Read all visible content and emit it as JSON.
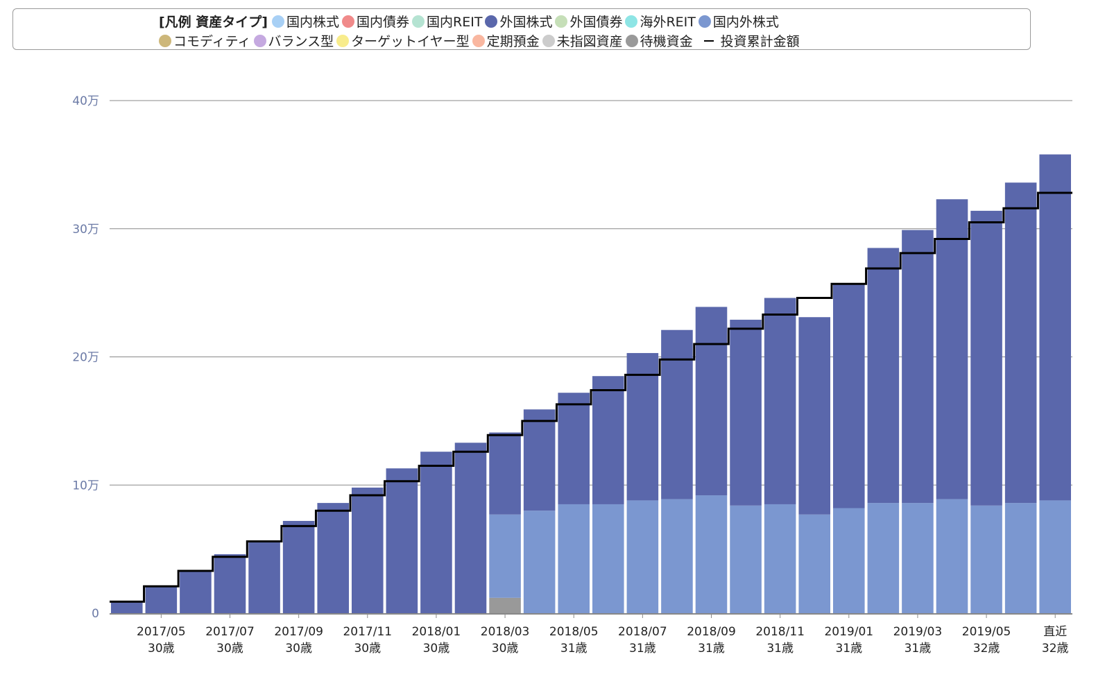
{
  "legend": {
    "title": "[凡例 資産タイプ]",
    "items": [
      {
        "label": "国内株式",
        "color": "#a8d0f5"
      },
      {
        "label": "国内債券",
        "color": "#f08a8a"
      },
      {
        "label": "国内REIT",
        "color": "#b5e3d2"
      },
      {
        "label": "外国株式",
        "color": "#5a67ab"
      },
      {
        "label": "外国債券",
        "color": "#c6dfb8"
      },
      {
        "label": "海外REIT",
        "color": "#8ee5e5"
      },
      {
        "label": "国内外株式",
        "color": "#7b97d0"
      },
      {
        "label": "コモディティ",
        "color": "#cdb77a"
      },
      {
        "label": "バランス型",
        "color": "#c5a9e0"
      },
      {
        "label": "ターゲットイヤー型",
        "color": "#f8ec8c"
      },
      {
        "label": "定期預金",
        "color": "#f9b7a0"
      },
      {
        "label": "未指図資産",
        "color": "#cccccc"
      },
      {
        "label": "待機資金",
        "color": "#999999"
      }
    ],
    "line_label": "投資累計金額"
  },
  "chart_data": {
    "type": "bar",
    "stacked": true,
    "y_tick_labels": [
      "0",
      "10万",
      "20万",
      "30万",
      "40万"
    ],
    "y_tick_values": [
      0,
      100000,
      200000,
      300000,
      400000
    ],
    "ylim": [
      0,
      400000
    ],
    "grid": true,
    "x_labels": [
      {
        "date": "2017/05",
        "age": "30歳",
        "index": 1
      },
      {
        "date": "2017/07",
        "age": "30歳",
        "index": 3
      },
      {
        "date": "2017/09",
        "age": "30歳",
        "index": 5
      },
      {
        "date": "2017/11",
        "age": "30歳",
        "index": 7
      },
      {
        "date": "2018/01",
        "age": "30歳",
        "index": 9
      },
      {
        "date": "2018/03",
        "age": "30歳",
        "index": 11
      },
      {
        "date": "2018/05",
        "age": "31歳",
        "index": 13
      },
      {
        "date": "2018/07",
        "age": "31歳",
        "index": 15
      },
      {
        "date": "2018/09",
        "age": "31歳",
        "index": 17
      },
      {
        "date": "2018/11",
        "age": "31歳",
        "index": 19
      },
      {
        "date": "2019/01",
        "age": "31歳",
        "index": 21
      },
      {
        "date": "2019/03",
        "age": "31歳",
        "index": 23
      },
      {
        "date": "2019/05",
        "age": "32歳",
        "index": 25
      },
      {
        "date": "直近",
        "age": "32歳",
        "index": 27
      }
    ],
    "series": [
      {
        "name": "待機資金",
        "color": "#999999",
        "values": [
          0,
          0,
          0,
          0,
          0,
          0,
          0,
          0,
          0,
          0,
          0,
          12000,
          0,
          0,
          0,
          0,
          0,
          0,
          0,
          0,
          0,
          0,
          0,
          0,
          0,
          0,
          0,
          0
        ]
      },
      {
        "name": "国内外株式",
        "color": "#7b97d0",
        "values": [
          0,
          0,
          0,
          0,
          0,
          0,
          0,
          0,
          0,
          0,
          0,
          65000,
          80000,
          85000,
          85000,
          88000,
          89000,
          92000,
          84000,
          85000,
          77000,
          82000,
          86000,
          86000,
          89000,
          84000,
          86000,
          88000
        ]
      },
      {
        "name": "外国株式",
        "color": "#5a67ab",
        "values": [
          9000,
          21000,
          33000,
          46000,
          56000,
          72000,
          86000,
          98000,
          113000,
          126000,
          133000,
          64000,
          79000,
          87000,
          100000,
          115000,
          132000,
          147000,
          145000,
          161000,
          154000,
          175000,
          199000,
          213000,
          234000,
          230000,
          250000,
          270000
        ]
      }
    ],
    "cumulative_investment": {
      "name": "投資累計金額",
      "color": "#000000",
      "values": [
        9000,
        21000,
        33000,
        44000,
        56000,
        68000,
        80000,
        92000,
        103000,
        115000,
        126000,
        139000,
        150000,
        163000,
        174000,
        186000,
        198000,
        210000,
        222000,
        233000,
        246000,
        257000,
        269000,
        281000,
        292000,
        305000,
        316000,
        328000
      ]
    }
  }
}
